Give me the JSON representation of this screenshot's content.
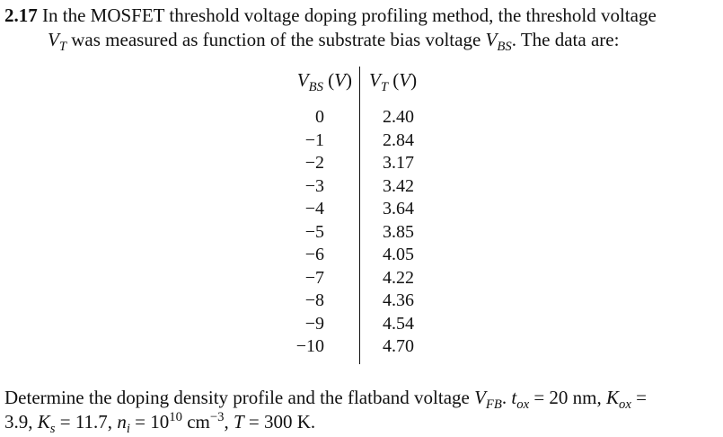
{
  "problem": {
    "number": "2.17",
    "line1": "In the MOSFET threshold voltage doping profiling method, the threshold voltage",
    "line2_a": "was measured as function of the substrate bias voltage",
    "line2_b": ". The data are:"
  },
  "table": {
    "header_left": "V_BS (V)",
    "header_right": "V_T (V)",
    "vbs": [
      "0",
      "−1",
      "−2",
      "−3",
      "−4",
      "−5",
      "−6",
      "−7",
      "−8",
      "−9",
      "−10"
    ],
    "vt": [
      "2.40",
      "2.84",
      "3.17",
      "3.42",
      "3.64",
      "3.85",
      "4.05",
      "4.22",
      "4.36",
      "4.54",
      "4.70"
    ]
  },
  "footer": {
    "text_a": "Determine the doping density profile and the flatband voltage",
    "tox": "= 20 nm,",
    "kox": "=",
    "line2": "3.9,",
    "ks": "= 11.7,",
    "ni": "= 10",
    "ni_exp": "10",
    "ni_unit": "cm",
    "ni_unit_exp": "−3",
    "temp": "= 300 K."
  }
}
